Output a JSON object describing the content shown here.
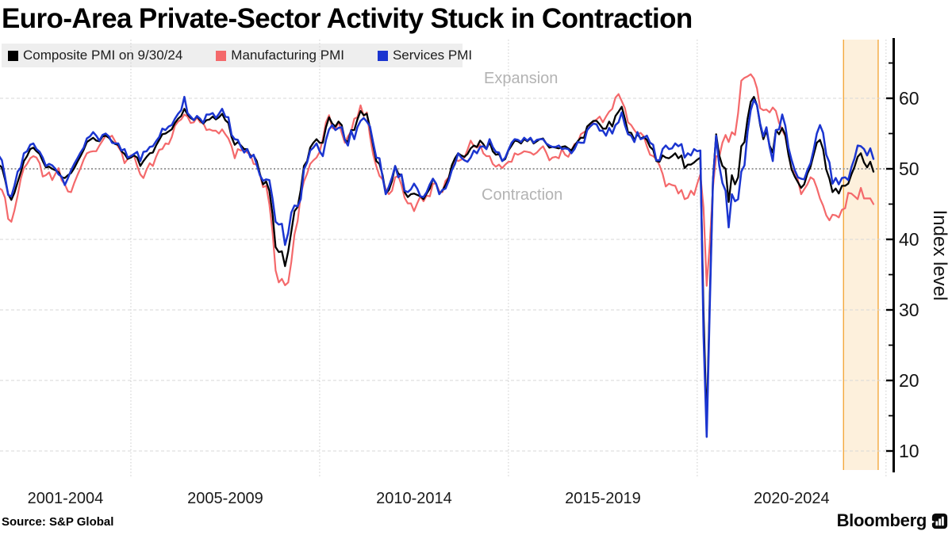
{
  "title": "Euro-Area Private-Sector Activity Stuck in Contraction",
  "legend": {
    "items": [
      {
        "key": "composite",
        "label": "Composite PMI on 9/30/24",
        "color": "#000000"
      },
      {
        "key": "manufacturing",
        "label": "Manufacturing PMI",
        "color": "#f4696b"
      },
      {
        "key": "services",
        "label": "Services PMI",
        "color": "#1b35d0"
      }
    ]
  },
  "annotations": {
    "expansion": "Expansion",
    "contraction": "Contraction"
  },
  "y_axis": {
    "label": "Index level",
    "ticks": [
      10,
      20,
      30,
      40,
      50,
      60
    ],
    "minor_ticks": [
      15,
      25,
      35,
      45,
      55,
      65
    ]
  },
  "x_axis": {
    "labels": [
      "2001-2004",
      "2005-2009",
      "2010-2014",
      "2015-2019",
      "2020-2024"
    ]
  },
  "source": "Source: S&P Global",
  "brand": "Bloomberg",
  "chart_data": {
    "type": "line",
    "title": "Euro-Area Private-Sector Activity Stuck in Contraction",
    "frequency": "monthly",
    "x_start": "2001-07",
    "x_end": "2024-09",
    "ylabel": "Index level",
    "ylim": [
      7.3,
      68.3
    ],
    "baseline": 50,
    "y_gridlines": [
      10,
      20,
      30,
      40,
      60
    ],
    "x_gridline_years": [
      2005,
      2010,
      2015,
      2020,
      2025
    ],
    "highlight_band": {
      "from": "2023-12",
      "to": "2024-10",
      "fill": "#fdf0dc",
      "border": "#f3a83e"
    },
    "zone_labels": {
      "above_baseline": "Expansion",
      "below_baseline": "Contraction"
    },
    "series": [
      {
        "key": "composite",
        "name": "Composite PMI on 9/30/24",
        "color": "#000000",
        "values": [
          50.6,
          50.2,
          48.5,
          46.4,
          45.6,
          46.6,
          48.1,
          49.5,
          51.1,
          51.8,
          52.8,
          53.0,
          52.5,
          52.1,
          51.1,
          50.2,
          50.3,
          50.0,
          49.8,
          49.5,
          48.8,
          48.7,
          49.1,
          49.4,
          50.1,
          51.0,
          51.8,
          52.7,
          53.8,
          54.1,
          54.4,
          54.0,
          53.9,
          54.6,
          54.7,
          54.4,
          53.9,
          53.5,
          53.4,
          52.5,
          52.1,
          51.4,
          51.6,
          51.9,
          51.6,
          50.4,
          51.1,
          51.7,
          52.2,
          52.3,
          53.3,
          54.1,
          54.9,
          55.0,
          55.3,
          55.6,
          56.5,
          57.1,
          57.5,
          58.5,
          57.7,
          57.2,
          56.9,
          57.4,
          56.9,
          56.4,
          56.9,
          57.0,
          57.4,
          57.0,
          57.3,
          57.8,
          56.9,
          56.5,
          54.5,
          53.4,
          53.8,
          53.3,
          52.8,
          52.8,
          51.8,
          51.9,
          51.1,
          49.3,
          47.8,
          48.2,
          46.9,
          43.6,
          38.9,
          38.2,
          38.3,
          36.2,
          38.3,
          41.1,
          44.0,
          44.6,
          47.0,
          50.4,
          51.1,
          53.0,
          53.7,
          54.2,
          53.7,
          53.7,
          55.9,
          57.3,
          56.4,
          56.0,
          56.7,
          56.2,
          54.1,
          53.8,
          55.5,
          55.5,
          57.0,
          58.2,
          57.6,
          57.8,
          55.8,
          53.3,
          51.1,
          50.7,
          49.1,
          46.5,
          47.0,
          48.3,
          50.4,
          49.3,
          49.1,
          46.7,
          46.0,
          46.4,
          46.5,
          46.3,
          46.1,
          45.7,
          46.5,
          47.2,
          48.6,
          47.9,
          46.5,
          46.9,
          47.7,
          48.7,
          50.5,
          51.5,
          52.2,
          51.9,
          51.7,
          52.1,
          52.9,
          53.3,
          53.1,
          54.0,
          53.5,
          52.8,
          53.8,
          52.5,
          52.0,
          52.1,
          51.1,
          51.4,
          52.6,
          53.3,
          54.0,
          53.9,
          53.6,
          54.2,
          53.9,
          54.3,
          53.6,
          53.9,
          54.2,
          54.3,
          53.6,
          53.0,
          53.1,
          53.0,
          52.9,
          53.1,
          53.2,
          52.9,
          52.6,
          53.3,
          53.9,
          54.4,
          54.4,
          56.0,
          56.4,
          56.8,
          56.8,
          56.3,
          55.7,
          55.7,
          56.7,
          56.0,
          57.5,
          58.1,
          58.8,
          57.1,
          55.2,
          55.1,
          54.1,
          54.9,
          54.3,
          54.5,
          54.1,
          53.1,
          52.7,
          51.1,
          51.0,
          51.9,
          51.6,
          51.5,
          51.8,
          52.2,
          51.5,
          51.9,
          50.1,
          50.6,
          50.6,
          50.9,
          51.3,
          51.6,
          29.7,
          13.6,
          31.9,
          48.5,
          54.9,
          51.9,
          50.4,
          50.0,
          45.3,
          49.1,
          47.8,
          48.8,
          53.2,
          53.8,
          57.1,
          59.5,
          60.2,
          59.0,
          56.2,
          54.2,
          55.4,
          53.3,
          52.3,
          55.5,
          54.9,
          55.8,
          54.8,
          52.0,
          49.9,
          48.9,
          48.1,
          47.3,
          47.8,
          49.3,
          50.3,
          52.0,
          53.7,
          54.1,
          52.8,
          49.9,
          48.6,
          46.7,
          47.2,
          46.5,
          47.6,
          47.6,
          47.9,
          49.2,
          50.3,
          51.7,
          52.2,
          50.9,
          50.2,
          51.0,
          49.6
        ]
      },
      {
        "key": "manufacturing",
        "name": "Manufacturing PMI",
        "color": "#f4696b",
        "values": [
          47.3,
          47.0,
          45.9,
          42.9,
          42.5,
          44.1,
          46.2,
          48.6,
          50.1,
          50.7,
          51.5,
          51.8,
          51.6,
          50.8,
          48.9,
          49.1,
          49.5,
          48.4,
          49.3,
          50.1,
          48.4,
          47.8,
          46.8,
          46.7,
          48.0,
          49.1,
          50.1,
          51.3,
          52.2,
          52.4,
          52.5,
          52.5,
          53.3,
          54.0,
          54.7,
          54.4,
          54.7,
          53.9,
          53.1,
          52.4,
          50.8,
          51.4,
          51.9,
          51.9,
          50.4,
          49.2,
          48.7,
          49.9,
          50.8,
          50.4,
          51.7,
          52.7,
          52.8,
          53.6,
          53.5,
          54.5,
          56.1,
          56.7,
          57.0,
          57.7,
          57.4,
          56.5,
          56.6,
          57.3,
          56.6,
          56.5,
          55.5,
          55.6,
          55.4,
          55.4,
          55.0,
          55.6,
          54.9,
          54.3,
          53.2,
          51.5,
          52.8,
          52.6,
          52.8,
          52.3,
          52.0,
          50.7,
          50.6,
          49.2,
          47.4,
          47.6,
          45.0,
          41.1,
          35.6,
          33.9,
          34.4,
          33.5,
          33.9,
          36.8,
          40.7,
          42.6,
          46.3,
          48.2,
          49.3,
          50.7,
          51.2,
          51.6,
          52.4,
          54.2,
          56.6,
          57.6,
          55.8,
          55.6,
          56.7,
          55.1,
          53.7,
          54.6,
          55.3,
          57.1,
          57.3,
          59.0,
          57.5,
          58.0,
          54.6,
          52.0,
          50.4,
          49.0,
          48.5,
          47.1,
          46.4,
          46.9,
          48.8,
          49.0,
          47.7,
          45.9,
          45.1,
          45.1,
          44.0,
          45.1,
          46.1,
          45.4,
          46.2,
          46.1,
          47.9,
          47.9,
          46.8,
          46.7,
          48.3,
          48.8,
          50.3,
          51.4,
          51.1,
          51.3,
          51.6,
          52.7,
          54.0,
          53.2,
          53.0,
          53.4,
          52.2,
          51.8,
          51.8,
          50.7,
          50.3,
          50.6,
          50.1,
          50.6,
          51.0,
          51.0,
          52.2,
          52.0,
          52.2,
          52.5,
          52.4,
          52.3,
          52.0,
          52.3,
          52.8,
          53.2,
          52.3,
          51.2,
          51.6,
          51.7,
          51.5,
          52.8,
          52.0,
          51.7,
          52.6,
          53.5,
          53.7,
          54.9,
          55.2,
          55.4,
          56.2,
          56.7,
          57.0,
          57.4,
          56.6,
          57.4,
          58.1,
          58.5,
          60.1,
          60.6,
          59.6,
          58.6,
          56.6,
          56.2,
          55.5,
          54.9,
          55.1,
          54.6,
          53.2,
          52.0,
          51.8,
          51.4,
          50.5,
          49.3,
          47.5,
          47.9,
          47.7,
          47.6,
          46.5,
          47.0,
          45.7,
          45.9,
          46.9,
          46.3,
          47.9,
          49.2,
          44.5,
          33.4,
          39.4,
          47.4,
          51.8,
          51.7,
          53.7,
          54.8,
          53.8,
          55.2,
          54.8,
          57.9,
          62.5,
          62.9,
          63.1,
          63.4,
          62.8,
          61.4,
          58.6,
          58.3,
          58.4,
          58.0,
          58.7,
          58.2,
          56.5,
          55.5,
          54.6,
          52.1,
          49.8,
          49.6,
          48.4,
          46.4,
          47.1,
          47.8,
          48.8,
          48.5,
          47.3,
          45.8,
          44.8,
          43.4,
          42.7,
          43.5,
          43.4,
          43.1,
          44.2,
          44.4,
          46.6,
          46.5,
          46.1,
          45.7,
          47.3,
          45.8,
          45.8,
          45.8,
          45.0
        ]
      },
      {
        "key": "services",
        "name": "Services PMI",
        "color": "#1b35d0",
        "values": [
          51.9,
          51.2,
          48.9,
          46.3,
          46.1,
          47.6,
          49.6,
          50.2,
          52.2,
          52.5,
          53.4,
          53.6,
          52.8,
          52.4,
          51.6,
          50.4,
          50.7,
          50.5,
          50.0,
          49.2,
          48.9,
          47.7,
          48.7,
          49.8,
          50.7,
          51.5,
          52.3,
          53.0,
          54.3,
          54.6,
          55.2,
          54.7,
          54.0,
          54.8,
          55.0,
          54.6,
          53.7,
          53.6,
          53.6,
          52.6,
          52.8,
          51.6,
          51.8,
          52.1,
          52.4,
          51.1,
          52.4,
          52.5,
          53.1,
          53.2,
          53.9,
          54.5,
          55.7,
          55.5,
          56.0,
          56.2,
          57.1,
          57.8,
          58.3,
          60.2,
          57.9,
          57.4,
          56.9,
          57.5,
          57.1,
          56.5,
          57.7,
          57.7,
          57.9,
          57.2,
          57.8,
          58.5,
          57.4,
          57.3,
          54.8,
          54.2,
          54.1,
          53.1,
          52.3,
          52.8,
          51.6,
          52.0,
          50.6,
          49.1,
          48.3,
          48.5,
          48.4,
          45.8,
          42.5,
          42.1,
          42.2,
          39.2,
          40.9,
          43.8,
          44.8,
          44.7,
          45.7,
          49.9,
          50.9,
          52.6,
          53.0,
          53.6,
          52.5,
          51.8,
          54.1,
          55.6,
          56.2,
          55.5,
          55.8,
          55.9,
          54.1,
          53.3,
          55.4,
          54.2,
          55.9,
          56.8,
          57.2,
          56.7,
          56.0,
          53.7,
          51.6,
          51.5,
          48.8,
          46.4,
          47.5,
          48.8,
          50.4,
          48.8,
          49.2,
          46.9,
          46.7,
          47.1,
          47.9,
          47.2,
          46.1,
          46.0,
          46.7,
          47.8,
          48.6,
          47.9,
          46.4,
          47.0,
          47.2,
          48.3,
          49.8,
          50.7,
          52.2,
          51.6,
          51.2,
          51.0,
          51.6,
          52.6,
          52.2,
          53.1,
          53.2,
          52.8,
          54.2,
          53.1,
          52.4,
          52.3,
          51.1,
          51.6,
          52.7,
          53.7,
          54.2,
          54.1,
          53.8,
          54.4,
          54.0,
          54.4,
          53.7,
          54.1,
          54.2,
          54.2,
          53.6,
          53.3,
          53.1,
          53.1,
          53.3,
          52.8,
          52.9,
          52.8,
          52.2,
          52.8,
          53.8,
          53.7,
          53.7,
          55.5,
          56.0,
          56.4,
          56.3,
          55.4,
          55.4,
          54.7,
          55.8,
          55.0,
          56.2,
          56.6,
          58.0,
          56.2,
          54.9,
          54.7,
          53.8,
          55.2,
          54.2,
          54.4,
          54.7,
          53.7,
          53.4,
          51.2,
          51.2,
          52.8,
          53.3,
          52.8,
          52.9,
          53.6,
          53.2,
          53.5,
          51.6,
          52.2,
          51.9,
          52.8,
          52.5,
          52.6,
          26.4,
          12.0,
          30.5,
          48.3,
          54.7,
          50.5,
          48.0,
          46.9,
          41.7,
          46.4,
          45.4,
          45.7,
          49.6,
          50.5,
          55.2,
          58.3,
          59.8,
          59.0,
          56.4,
          54.6,
          55.9,
          53.1,
          51.1,
          55.5,
          55.6,
          57.7,
          56.1,
          53.0,
          51.2,
          49.8,
          48.8,
          48.6,
          48.5,
          49.8,
          50.8,
          52.7,
          55.0,
          56.2,
          55.1,
          52.0,
          50.9,
          47.9,
          48.7,
          47.8,
          48.7,
          48.8,
          48.4,
          50.2,
          51.5,
          53.3,
          53.2,
          52.8,
          51.9,
          52.9,
          51.4
        ]
      }
    ]
  }
}
